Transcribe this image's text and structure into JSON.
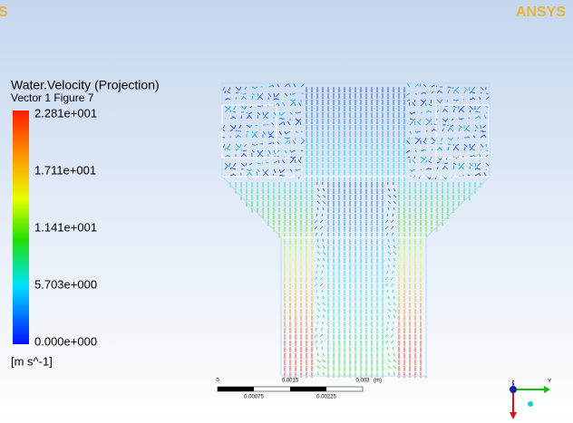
{
  "header": {
    "left_logo": "S",
    "right_logo": "ANSYS"
  },
  "legend": {
    "title": "Water.Velocity (Projection)",
    "subtitle": "Vector 1 Figure 7",
    "labels": [
      "2.281e+001",
      "1.711e+001",
      "1.141e+001",
      "5.703e+000",
      "0.000e+000"
    ],
    "unit": "[m s^-1]"
  },
  "scale_bar": {
    "top_labels": [
      "0",
      "0.0015",
      "0.003"
    ],
    "unit": "(m)",
    "bottom_labels": [
      "0.00075",
      "0.00225"
    ]
  },
  "triad": {
    "up": "Z",
    "right": "Y"
  }
}
